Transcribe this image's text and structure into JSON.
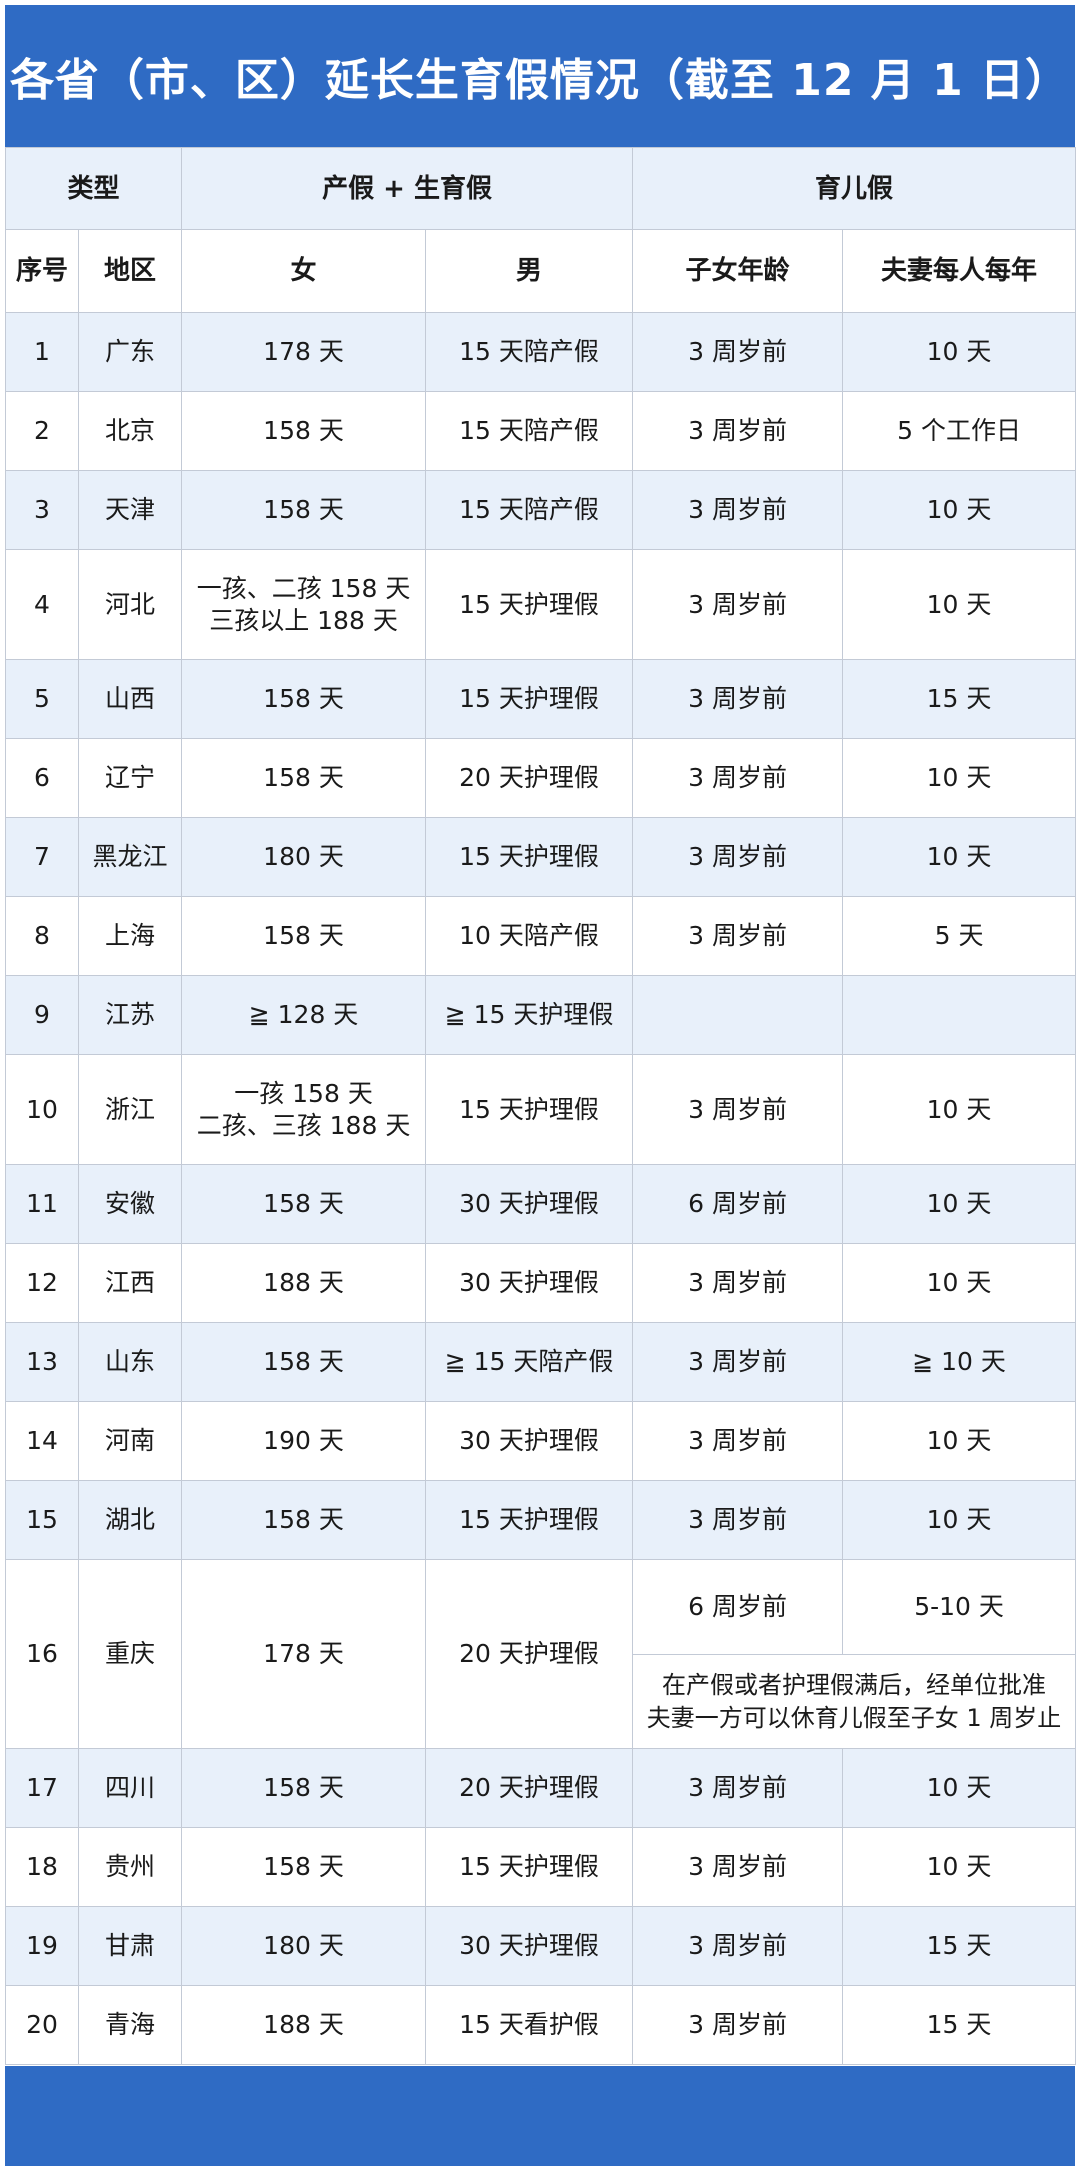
{
  "title": "各省（市、区）延长生育假情况（截至 12 月 1 日）",
  "header": {
    "type_label": "类型",
    "maternity_group": "产假 + 生育假",
    "parental_group": "育儿假",
    "col_no": "序号",
    "col_region": "地区",
    "col_female": "女",
    "col_male": "男",
    "col_child_age": "子女年龄",
    "col_per_year": "夫妻每人每年"
  },
  "rows": [
    {
      "no": "1",
      "region": "广东",
      "female": "178 天",
      "male": "15 天陪产假",
      "age": "3 周岁前",
      "days": "10 天"
    },
    {
      "no": "2",
      "region": "北京",
      "female": "158 天",
      "male": "15 天陪产假",
      "age": "3 周岁前",
      "days": "5 个工作日"
    },
    {
      "no": "3",
      "region": "天津",
      "female": "158 天",
      "male": "15 天陪产假",
      "age": "3 周岁前",
      "days": "10 天"
    },
    {
      "no": "4",
      "region": "河北",
      "female": "一孩、二孩 158 天\n三孩以上 188 天",
      "male": "15 天护理假",
      "age": "3 周岁前",
      "days": "10 天"
    },
    {
      "no": "5",
      "region": "山西",
      "female": "158 天",
      "male": "15 天护理假",
      "age": "3 周岁前",
      "days": "15 天"
    },
    {
      "no": "6",
      "region": "辽宁",
      "female": "158 天",
      "male": "20 天护理假",
      "age": "3 周岁前",
      "days": "10 天"
    },
    {
      "no": "7",
      "region": "黑龙江",
      "female": "180 天",
      "male": "15 天护理假",
      "age": "3 周岁前",
      "days": "10 天"
    },
    {
      "no": "8",
      "region": "上海",
      "female": "158 天",
      "male": "10 天陪产假",
      "age": "3 周岁前",
      "days": "5 天"
    },
    {
      "no": "9",
      "region": "江苏",
      "female": "≧ 128 天",
      "male": "≧ 15 天护理假",
      "age": "",
      "days": ""
    },
    {
      "no": "10",
      "region": "浙江",
      "female": "一孩 158 天\n二孩、三孩 188 天",
      "male": "15 天护理假",
      "age": "3 周岁前",
      "days": "10 天"
    },
    {
      "no": "11",
      "region": "安徽",
      "female": "158 天",
      "male": "30 天护理假",
      "age": "6 周岁前",
      "days": "10 天"
    },
    {
      "no": "12",
      "region": "江西",
      "female": "188 天",
      "male": "30 天护理假",
      "age": "3 周岁前",
      "days": "10 天"
    },
    {
      "no": "13",
      "region": "山东",
      "female": "158 天",
      "male": "≧ 15 天陪产假",
      "age": "3 周岁前",
      "days": "≧ 10 天"
    },
    {
      "no": "14",
      "region": "河南",
      "female": "190 天",
      "male": "30 天护理假",
      "age": "3 周岁前",
      "days": "10 天"
    },
    {
      "no": "15",
      "region": "湖北",
      "female": "158 天",
      "male": "15 天护理假",
      "age": "3 周岁前",
      "days": "10 天"
    },
    {
      "no": "16",
      "region": "重庆",
      "female": "178 天",
      "male": "20 天护理假",
      "age": "6 周岁前",
      "days": "5-10 天",
      "note": "在产假或者护理假满后，经单位批准\n夫妻一方可以休育儿假至子女 1 周岁止"
    },
    {
      "no": "17",
      "region": "四川",
      "female": "158 天",
      "male": "20 天护理假",
      "age": "3 周岁前",
      "days": "10 天"
    },
    {
      "no": "18",
      "region": "贵州",
      "female": "158 天",
      "male": "15 天护理假",
      "age": "3 周岁前",
      "days": "10 天"
    },
    {
      "no": "19",
      "region": "甘肃",
      "female": "180 天",
      "male": "30 天护理假",
      "age": "3 周岁前",
      "days": "15 天"
    },
    {
      "no": "20",
      "region": "青海",
      "female": "188 天",
      "male": "15 天看护假",
      "age": "3 周岁前",
      "days": "15 天"
    }
  ],
  "colors": {
    "banner": "#2f6bc4",
    "stripe": "#e8f0fa",
    "border": "#c3cad6"
  }
}
